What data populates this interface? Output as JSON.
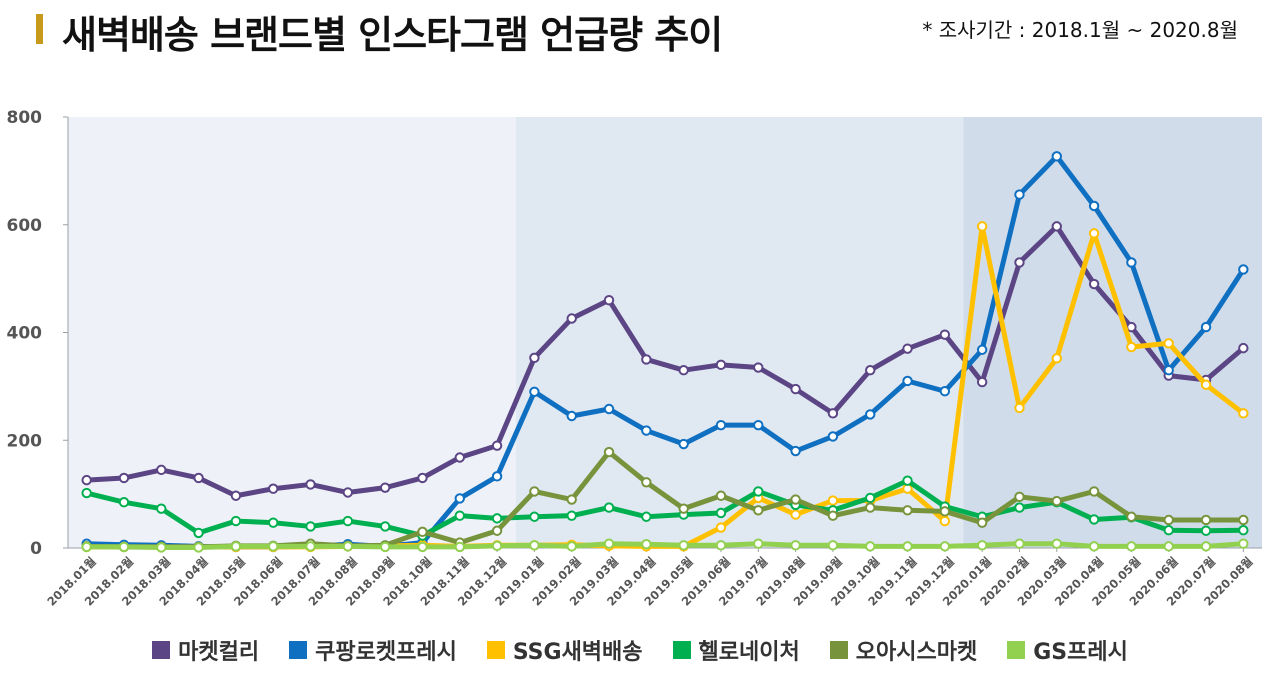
{
  "header": {
    "title": "새벽배송 브랜드별 인스타그램 언급량 추이",
    "period": "* 조사기간 : 2018.1월  ~ 2020.8월"
  },
  "chart_data": {
    "type": "line",
    "title": "새벽배송 브랜드별 인스타그램 언급량 추이",
    "xlabel": "",
    "ylabel": "",
    "ylim": [
      0,
      800
    ],
    "yticks": [
      0,
      200,
      400,
      600,
      800
    ],
    "grid": false,
    "legend_position": "bottom",
    "categories": [
      "2018.01월",
      "2018.02월",
      "2018.03월",
      "2018.04월",
      "2018.05월",
      "2018.06월",
      "2018.07월",
      "2018.08월",
      "2018.09월",
      "2018.10월",
      "2018.11월",
      "2018.12월",
      "2019.01월",
      "2019.02월",
      "2019.03월",
      "2019.04월",
      "2019.05월",
      "2019.06월",
      "2019.07월",
      "2019.08월",
      "2019.09월",
      "2019.10월",
      "2019.11월",
      "2019.12월",
      "2020.01월",
      "2020.02월",
      "2020.03월",
      "2020.04월",
      "2020.05월",
      "2020.06월",
      "2020.07월",
      "2020.08월"
    ],
    "series": [
      {
        "name": "마켓컬리",
        "color": "#5b4584",
        "values": [
          126,
          130,
          145,
          130,
          97,
          110,
          118,
          103,
          112,
          130,
          168,
          190,
          353,
          426,
          460,
          350,
          330,
          340,
          335,
          295,
          250,
          330,
          370,
          396,
          308,
          530,
          597,
          490,
          410,
          320,
          312,
          371
        ]
      },
      {
        "name": "쿠팡로켓프레시",
        "color": "#0f6fc1",
        "values": [
          8,
          6,
          5,
          3,
          2,
          2,
          3,
          7,
          3,
          10,
          92,
          133,
          290,
          245,
          258,
          218,
          193,
          228,
          228,
          180,
          207,
          248,
          310,
          291,
          368,
          656,
          727,
          635,
          530,
          330,
          410,
          517
        ]
      },
      {
        "name": "SSG새벽배송",
        "color": "#ffc000",
        "values": [
          2,
          2,
          2,
          2,
          2,
          2,
          2,
          3,
          4,
          5,
          3,
          5,
          5,
          6,
          4,
          3,
          3,
          38,
          93,
          62,
          88,
          88,
          110,
          50,
          597,
          260,
          352,
          584,
          373,
          380,
          303,
          250
        ]
      },
      {
        "name": "헬로네이처",
        "color": "#00b050",
        "values": [
          102,
          85,
          73,
          28,
          50,
          47,
          40,
          50,
          40,
          23,
          60,
          55,
          58,
          60,
          75,
          58,
          62,
          65,
          105,
          80,
          70,
          93,
          125,
          77,
          58,
          75,
          85,
          53,
          57,
          33,
          32,
          33
        ]
      },
      {
        "name": "오아시스마켓",
        "color": "#77933c",
        "values": [
          3,
          2,
          2,
          2,
          4,
          4,
          8,
          4,
          5,
          30,
          10,
          32,
          105,
          90,
          178,
          122,
          73,
          97,
          70,
          90,
          60,
          75,
          70,
          68,
          47,
          95,
          87,
          105,
          58,
          52,
          52,
          52
        ]
      },
      {
        "name": "GS프레시",
        "color": "#92d050",
        "values": [
          2,
          2,
          1,
          1,
          3,
          3,
          3,
          3,
          2,
          2,
          2,
          4,
          5,
          3,
          8,
          7,
          5,
          5,
          8,
          5,
          5,
          3,
          3,
          3,
          5,
          8,
          8,
          3,
          3,
          3,
          3,
          8
        ]
      }
    ],
    "shaded_periods": [
      {
        "from": "2018.01월",
        "to": "2018.12월",
        "color": "#eef2f8"
      },
      {
        "from": "2019.01월",
        "to": "2019.12월",
        "color": "#e0e8f2"
      },
      {
        "from": "2020.01월",
        "to": "2020.08월",
        "color": "#d0dcea"
      }
    ]
  }
}
